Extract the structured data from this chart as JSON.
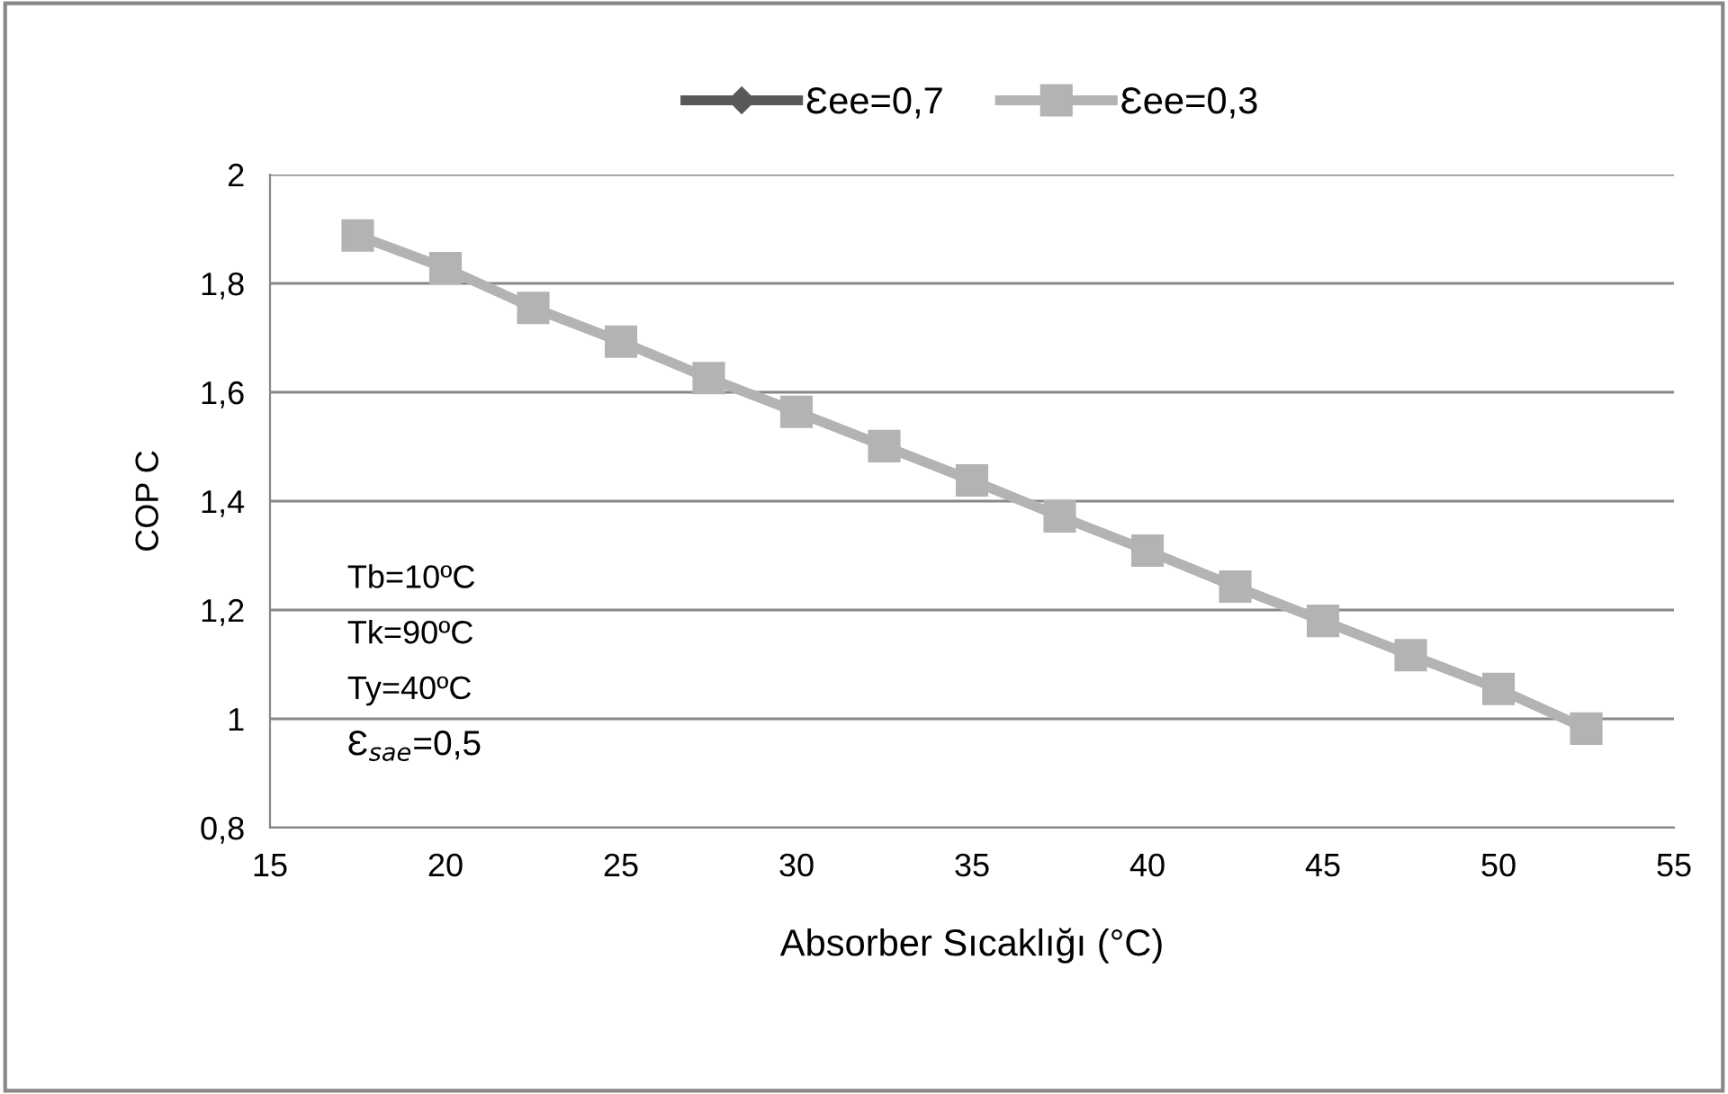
{
  "chart_data": {
    "type": "line",
    "xlabel": "Absorber Sıcaklığı (°C)",
    "ylabel": "COP C",
    "x": [
      17.5,
      20,
      22.5,
      25,
      27.5,
      30,
      32.5,
      35,
      37.5,
      40,
      42.5,
      45,
      47.5,
      50,
      52.5
    ],
    "series": [
      {
        "name": "Ɛee=0,7",
        "color": "#595959",
        "marker": "diamond",
        "values": [
          null,
          null,
          null,
          null,
          null,
          null,
          null,
          null,
          null,
          null,
          null,
          null,
          null,
          null,
          null
        ]
      },
      {
        "name": "Ɛee=0,3",
        "color": "#b3b3b3",
        "marker": "square",
        "values": [
          1.888,
          1.828,
          1.755,
          1.693,
          1.626,
          1.564,
          1.501,
          1.438,
          1.372,
          1.309,
          1.243,
          1.18,
          1.117,
          1.055,
          0.982
        ]
      }
    ],
    "xlim": [
      15,
      55
    ],
    "xticks": [
      15,
      20,
      25,
      30,
      35,
      40,
      45,
      50,
      55
    ],
    "ylim": [
      0.8,
      2
    ],
    "yticks": [
      {
        "value": 0.8,
        "label": "0,8"
      },
      1,
      {
        "value": 1.2,
        "label": "1,2"
      },
      {
        "value": 1.4,
        "label": "1,4"
      },
      {
        "value": 1.6,
        "label": "1,6"
      },
      {
        "value": 1.8,
        "label": "1,8"
      },
      2
    ],
    "grid": "y",
    "legend": "top",
    "annotations": [
      "Tb=10ºC",
      "Tk=90ºC",
      "Ty=40ºC",
      "Ɛ$_{sae}$=0,5"
    ]
  }
}
